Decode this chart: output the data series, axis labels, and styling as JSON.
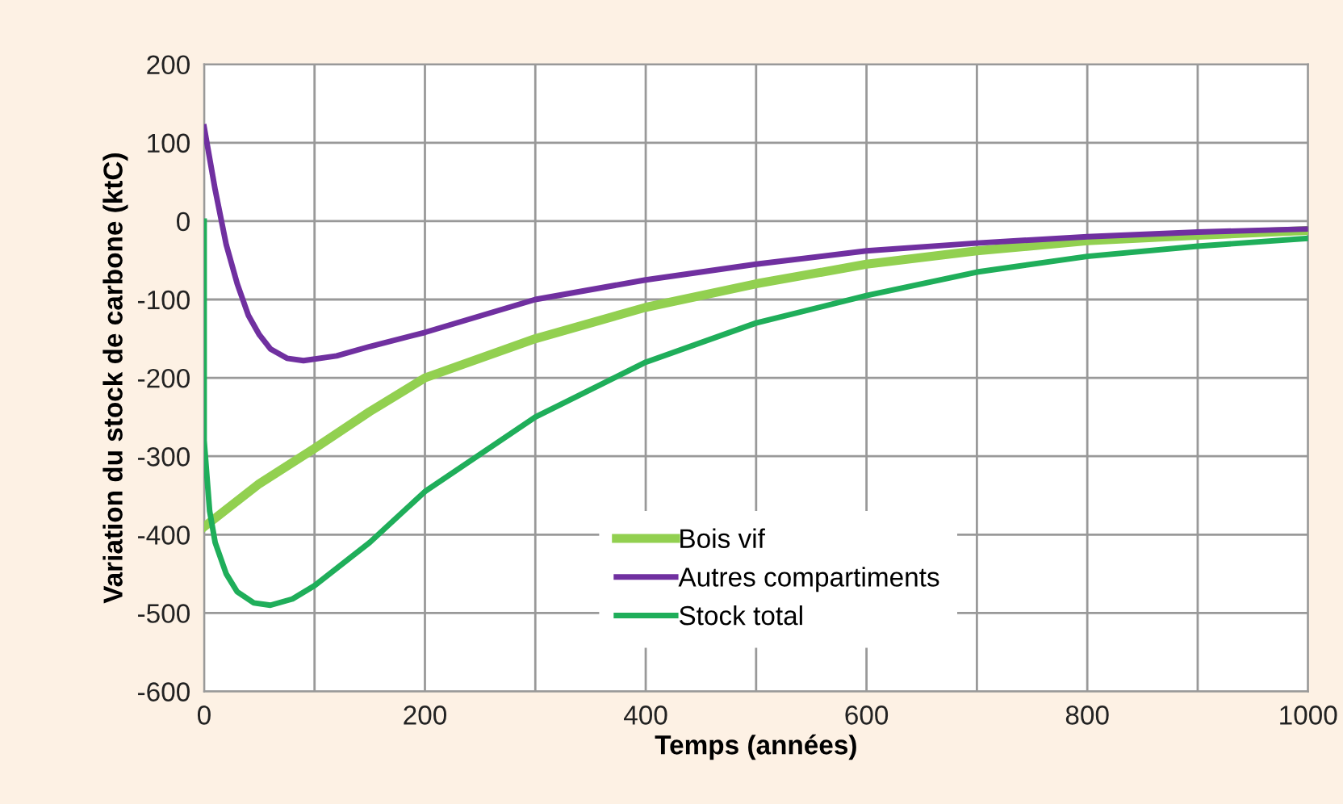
{
  "chart_data": {
    "type": "line",
    "xlabel": "Temps (années)",
    "ylabel": "Variation du stock de carbone (ktC)",
    "xlim": [
      0,
      1000
    ],
    "ylim": [
      -600,
      200
    ],
    "xticks": [
      0,
      {
        "value": 100,
        "label": null
      },
      200,
      {
        "value": 300,
        "label": null
      },
      400,
      {
        "value": 500,
        "label": null
      },
      600,
      {
        "value": 700,
        "label": null
      },
      800,
      {
        "value": 900,
        "label": null
      },
      1000
    ],
    "yticks": [
      -600,
      -500,
      -400,
      -300,
      -200,
      -100,
      0,
      100,
      200
    ],
    "grid": true,
    "legend": "bottom",
    "line_style": "solid",
    "series": [
      {
        "name": "Bois vif",
        "color": "#92d050",
        "x": [
          0,
          50,
          100,
          150,
          200,
          300,
          400,
          500,
          600,
          700,
          800,
          900,
          1000
        ],
        "values": [
          -390,
          -335,
          -290,
          -243,
          -200,
          -150,
          -110,
          -80,
          -55,
          -38,
          -25,
          -18,
          -12
        ]
      },
      {
        "name": "Autres compartiments",
        "color": "#7030a0",
        "x": [
          0,
          10,
          20,
          30,
          40,
          50,
          60,
          75,
          90,
          120,
          150,
          200,
          300,
          400,
          500,
          600,
          700,
          800,
          900,
          1000
        ],
        "values": [
          120,
          40,
          -30,
          -80,
          -120,
          -145,
          -163,
          -175,
          -178,
          -172,
          -160,
          -142,
          -100,
          -75,
          -55,
          -38,
          -28,
          -20,
          -14,
          -10
        ]
      },
      {
        "name": "Stock total",
        "color": "#1fae5a",
        "x": [
          0,
          0,
          5,
          10,
          20,
          30,
          45,
          60,
          80,
          100,
          150,
          200,
          300,
          400,
          500,
          600,
          700,
          800,
          900,
          1000
        ],
        "values": [
          0,
          -280,
          -370,
          -410,
          -450,
          -473,
          -487,
          -490,
          -482,
          -465,
          -410,
          -345,
          -250,
          -180,
          -130,
          -95,
          -65,
          -45,
          -32,
          -22
        ]
      }
    ]
  }
}
